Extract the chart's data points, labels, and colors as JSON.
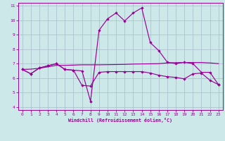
{
  "xlabel": "Windchill (Refroidissement éolien,°C)",
  "xlim": [
    -0.5,
    23.5
  ],
  "ylim": [
    3.8,
    11.2
  ],
  "yticks": [
    4,
    5,
    6,
    7,
    8,
    9,
    10,
    11
  ],
  "xticks": [
    0,
    1,
    2,
    3,
    4,
    5,
    6,
    7,
    8,
    9,
    10,
    11,
    12,
    13,
    14,
    15,
    16,
    17,
    18,
    19,
    20,
    21,
    22,
    23
  ],
  "background_color": "#cce8e8",
  "grid_color": "#aabbcc",
  "line_color": "#990099",
  "line1_x": [
    0,
    1,
    2,
    3,
    4,
    5,
    6,
    7,
    8,
    9,
    10,
    11,
    12,
    13,
    14,
    15,
    16,
    17,
    18,
    19,
    20,
    21,
    22,
    23
  ],
  "line1_y": [
    6.6,
    6.3,
    6.7,
    6.85,
    7.0,
    6.6,
    6.55,
    5.5,
    5.45,
    6.4,
    6.45,
    6.45,
    6.45,
    6.45,
    6.45,
    6.35,
    6.2,
    6.1,
    6.05,
    5.95,
    6.3,
    6.35,
    5.85,
    5.55
  ],
  "line2_x": [
    0,
    1,
    2,
    3,
    4,
    5,
    6,
    7,
    8,
    9,
    10,
    11,
    12,
    13,
    14,
    15,
    16,
    17,
    18,
    19,
    20,
    21,
    22,
    23
  ],
  "line2_y": [
    6.6,
    6.3,
    6.7,
    6.85,
    7.0,
    6.6,
    6.55,
    6.5,
    4.4,
    9.3,
    10.1,
    10.5,
    9.95,
    10.5,
    10.85,
    8.45,
    7.9,
    7.1,
    7.0,
    7.1,
    7.0,
    6.4,
    6.4,
    5.55
  ],
  "line3_x": [
    0,
    1,
    2,
    3,
    4,
    5,
    6,
    7,
    8,
    9,
    10,
    11,
    12,
    13,
    14,
    15,
    16,
    17,
    18,
    19,
    20,
    21,
    22,
    23
  ],
  "line3_y": [
    6.6,
    6.62,
    6.68,
    6.78,
    6.88,
    6.88,
    6.9,
    6.92,
    6.92,
    6.92,
    6.93,
    6.94,
    6.95,
    6.97,
    6.98,
    6.99,
    7.0,
    7.05,
    7.07,
    7.08,
    7.08,
    7.08,
    7.05,
    7.0
  ]
}
